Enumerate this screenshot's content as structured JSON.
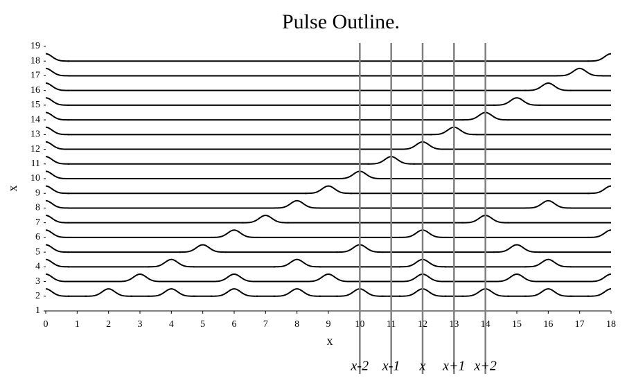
{
  "chart_data": {
    "type": "pulse",
    "title": "Pulse Outline.",
    "x_label": "x",
    "y_label": "x",
    "xlim": [
      0,
      18
    ],
    "xticks": [
      0,
      1,
      2,
      3,
      4,
      5,
      6,
      7,
      8,
      9,
      10,
      11,
      12,
      13,
      14,
      15,
      16,
      17,
      18
    ],
    "ylim": [
      1,
      19
    ],
    "yticks": [
      1,
      2,
      3,
      4,
      5,
      6,
      7,
      8,
      9,
      10,
      11,
      12,
      13,
      14,
      15,
      16,
      17,
      18,
      19
    ],
    "color": "#000000",
    "series": [
      {
        "baseline": 2,
        "x": [
          0,
          2,
          4,
          6,
          8,
          10,
          12,
          14,
          16,
          18
        ],
        "values": [
          2.5,
          2.5,
          2.5,
          2.5,
          2.5,
          2.5,
          2.5,
          2.5,
          2.5,
          2.5
        ]
      },
      {
        "baseline": 3,
        "x": [
          0,
          3,
          6,
          9,
          12,
          15,
          18
        ],
        "values": [
          3.5,
          3.5,
          3.5,
          3.5,
          3.5,
          3.5,
          3.5
        ]
      },
      {
        "baseline": 4,
        "x": [
          0,
          4,
          8,
          12,
          16
        ],
        "values": [
          4.5,
          4.5,
          4.5,
          4.5,
          4.5
        ]
      },
      {
        "baseline": 5,
        "x": [
          0,
          5,
          10,
          15
        ],
        "values": [
          5.5,
          5.5,
          5.5,
          5.5
        ]
      },
      {
        "baseline": 6,
        "x": [
          0,
          6,
          12,
          18
        ],
        "values": [
          6.5,
          6.5,
          6.5,
          6.5
        ]
      },
      {
        "baseline": 7,
        "x": [
          0,
          7,
          14
        ],
        "values": [
          7.5,
          7.5,
          7.5
        ]
      },
      {
        "baseline": 8,
        "x": [
          0,
          8,
          16
        ],
        "values": [
          8.5,
          8.5,
          8.5
        ]
      },
      {
        "baseline": 9,
        "x": [
          0,
          9,
          18
        ],
        "values": [
          9.5,
          9.5,
          9.5
        ]
      },
      {
        "baseline": 10,
        "x": [
          0,
          10
        ],
        "values": [
          10.5,
          10.5
        ]
      },
      {
        "baseline": 11,
        "x": [
          0,
          11
        ],
        "values": [
          11.5,
          11.5
        ]
      },
      {
        "baseline": 12,
        "x": [
          0,
          12
        ],
        "values": [
          12.5,
          12.5
        ]
      },
      {
        "baseline": 13,
        "x": [
          0,
          13
        ],
        "values": [
          13.5,
          13.5
        ]
      },
      {
        "baseline": 14,
        "x": [
          0,
          14
        ],
        "values": [
          14.5,
          14.5
        ]
      },
      {
        "baseline": 15,
        "x": [
          0,
          15
        ],
        "values": [
          15.5,
          15.5
        ]
      },
      {
        "baseline": 16,
        "x": [
          0,
          16
        ],
        "values": [
          16.5,
          16.5
        ]
      },
      {
        "baseline": 17,
        "x": [
          0,
          17
        ],
        "values": [
          17.5,
          17.5
        ]
      },
      {
        "baseline": 18,
        "x": [
          0,
          18
        ],
        "values": [
          18.5,
          18.5
        ]
      }
    ],
    "reference_lines": [
      {
        "x": 10,
        "label": "x-2"
      },
      {
        "x": 11,
        "label": "x-1"
      },
      {
        "x": 12,
        "label": "x"
      },
      {
        "x": 13,
        "label": "x+1"
      },
      {
        "x": 14,
        "label": "x+2"
      }
    ],
    "reference_color": "#808080"
  }
}
